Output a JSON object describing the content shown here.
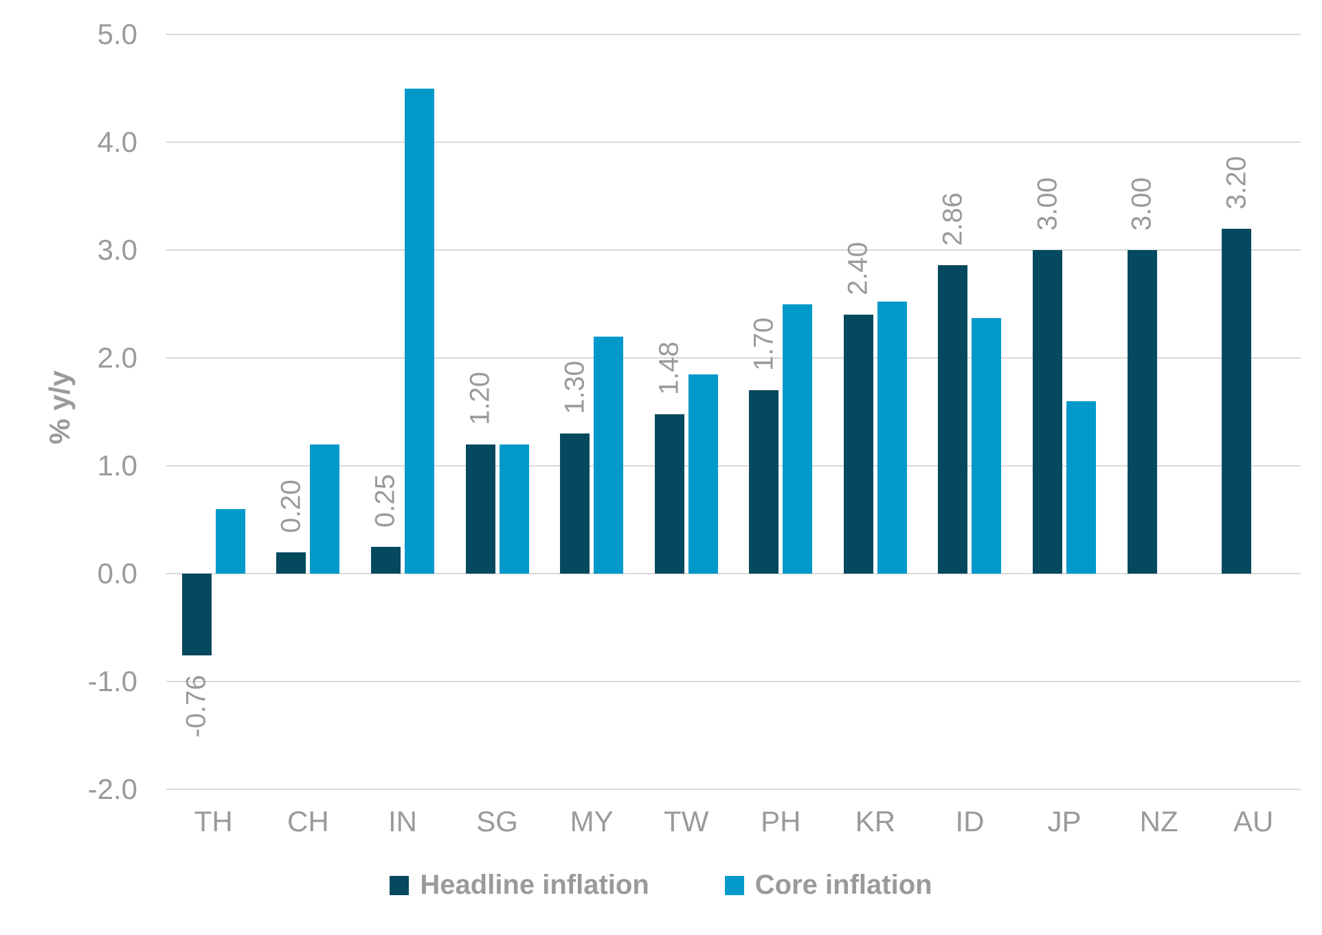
{
  "chart_data": {
    "type": "bar",
    "title": "",
    "ylabel": "% y/y",
    "categories": [
      "TH",
      "CH",
      "IN",
      "SG",
      "MY",
      "TW",
      "PH",
      "KR",
      "ID",
      "JP",
      "NZ",
      "AU"
    ],
    "series": [
      {
        "name": "Headline inflation",
        "color": "#05495e",
        "values": [
          -0.76,
          0.2,
          0.25,
          1.2,
          1.3,
          1.48,
          1.7,
          2.4,
          2.86,
          3.0,
          3.0,
          3.2
        ],
        "data_labels": [
          "-0.76",
          "0.20",
          "0.25",
          "1.20",
          "1.30",
          "1.48",
          "1.70",
          "2.40",
          "2.86",
          "3.00",
          "3.00",
          "3.20"
        ]
      },
      {
        "name": "Core inflation",
        "color": "#0099ca",
        "values": [
          0.6,
          1.2,
          4.5,
          1.2,
          2.2,
          1.85,
          2.5,
          2.52,
          2.37,
          1.6,
          null,
          null
        ],
        "data_labels": []
      }
    ],
    "ylim": [
      -2.0,
      5.0
    ],
    "ytick_step": 1.0,
    "yticks": [
      5.0,
      4.0,
      3.0,
      2.0,
      1.0,
      0.0,
      -1.0,
      -2.0
    ],
    "ytick_labels": [
      "5.0",
      "4.0",
      "3.0",
      "2.0",
      "1.0",
      "0.0",
      "-1.0",
      "-2.0"
    ],
    "grid": true,
    "legend_position": "bottom",
    "data_label_rotation_deg": 90
  },
  "colors": {
    "grid": "#d9d9d9",
    "text": "#9a9a9a",
    "background": "#ffffff"
  }
}
